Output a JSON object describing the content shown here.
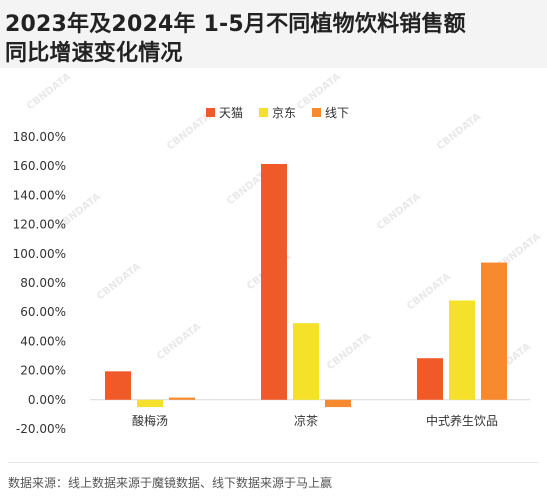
{
  "title": {
    "line1": "2023年及2024年 1-5月不同植物饮料销售额",
    "line2": "同比增速变化情况"
  },
  "chart_data": {
    "type": "bar",
    "categories": [
      "酸梅汤",
      "凉茶",
      "中式养生饮品"
    ],
    "series": [
      {
        "name": "天猫",
        "color": "#f05a28",
        "values": [
          19.5,
          161.5,
          28.5
        ]
      },
      {
        "name": "京东",
        "color": "#f5e12a",
        "values": [
          -5.0,
          52.5,
          68.0
        ]
      },
      {
        "name": "线下",
        "color": "#f78a2f",
        "values": [
          1.5,
          -5.0,
          94.0
        ]
      }
    ],
    "yticks": [
      "-20.00%",
      "0.00%",
      "20.00%",
      "40.00%",
      "60.00%",
      "80.00%",
      "100.00%",
      "120.00%",
      "140.00%",
      "160.00%",
      "180.00%"
    ],
    "ylim": [
      -20,
      180
    ],
    "legend_position": "top-center",
    "grid": false
  },
  "source": "数据来源：线上数据来源于魔镜数据、线下数据来源于马上赢",
  "watermark": "CBNDATA"
}
